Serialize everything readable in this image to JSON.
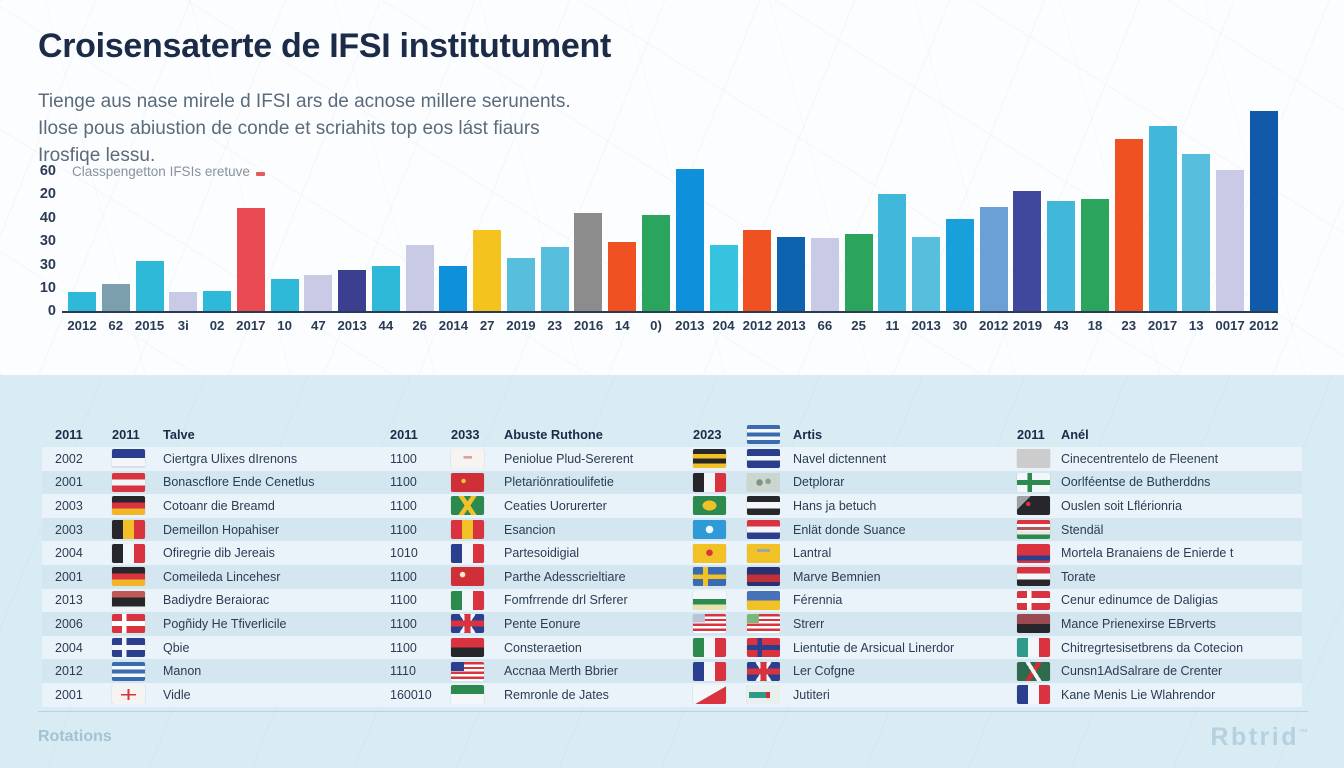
{
  "header": {
    "title": "Croisensaterte de IFSI institutument",
    "subtitle_lines": [
      "Tienge aus nase mirele d IFSI ars de acnose millere serunents.",
      "Ilose pous abiustion de conde et scriahits top eos lást fiaurs",
      "Irosfiqe lessu."
    ]
  },
  "chart_data": {
    "type": "bar",
    "title": "Classpengetton IFSIs eretuve",
    "xlabel": "",
    "ylabel": "",
    "ylim": [
      0,
      85
    ],
    "grid": false,
    "legend_position": "none",
    "y_ticks": [
      "60",
      "20",
      "40",
      "30",
      "30",
      "10",
      "0"
    ],
    "bars": [
      {
        "label": "2012",
        "value": 8.1,
        "color": "#2fb9d9"
      },
      {
        "label": "62",
        "value": 11.5,
        "color": "#7c9fae"
      },
      {
        "label": "2015",
        "value": 21.3,
        "color": "#2fb9d9"
      },
      {
        "label": "3i",
        "value": 8.1,
        "color": "#c9cae5"
      },
      {
        "label": "02",
        "value": 8.5,
        "color": "#2fb9d9"
      },
      {
        "label": "2017",
        "value": 43.8,
        "color": "#ea4a52"
      },
      {
        "label": "10",
        "value": 13.6,
        "color": "#2fb9d9"
      },
      {
        "label": "47",
        "value": 15.3,
        "color": "#c9cae5"
      },
      {
        "label": "2013",
        "value": 17.4,
        "color": "#3a3f90"
      },
      {
        "label": "44",
        "value": 19.1,
        "color": "#2fb9d9"
      },
      {
        "label": "26",
        "value": 28.1,
        "color": "#c9cae5"
      },
      {
        "label": "2014",
        "value": 19.1,
        "color": "#0f90da"
      },
      {
        "label": "27",
        "value": 34.5,
        "color": "#f4c31d"
      },
      {
        "label": "2019",
        "value": 22.6,
        "color": "#58bede"
      },
      {
        "label": "23",
        "value": 27.2,
        "color": "#58bede"
      },
      {
        "label": "2016",
        "value": 41.7,
        "color": "#8c8c8c"
      },
      {
        "label": "14",
        "value": 29.4,
        "color": "#f05123"
      },
      {
        "label": "0)",
        "value": 40.9,
        "color": "#2ba55d"
      },
      {
        "label": "2013",
        "value": 60.4,
        "color": "#0f90da"
      },
      {
        "label": "204",
        "value": 28.1,
        "color": "#35c3e0"
      },
      {
        "label": "2012",
        "value": 34.5,
        "color": "#f05123"
      },
      {
        "label": "2013",
        "value": 31.5,
        "color": "#0e63b0"
      },
      {
        "label": "66",
        "value": 31.1,
        "color": "#c9cae5"
      },
      {
        "label": "25",
        "value": 32.8,
        "color": "#2ba55d"
      },
      {
        "label": "11",
        "value": 49.8,
        "color": "#41b8d9"
      },
      {
        "label": "2013",
        "value": 31.5,
        "color": "#58bede"
      },
      {
        "label": "30",
        "value": 39.1,
        "color": "#199fd9"
      },
      {
        "label": "2012",
        "value": 44.3,
        "color": "#6ba0d6"
      },
      {
        "label": "2019",
        "value": 51.1,
        "color": "#3f489c"
      },
      {
        "label": "43",
        "value": 46.8,
        "color": "#41b8d9"
      },
      {
        "label": "18",
        "value": 47.7,
        "color": "#2ba55d"
      },
      {
        "label": "23",
        "value": 73.2,
        "color": "#f05123"
      },
      {
        "label": "2017",
        "value": 78.7,
        "color": "#41b8d9"
      },
      {
        "label": "13",
        "value": 66.8,
        "color": "#58bede"
      },
      {
        "label": "0017",
        "value": 60.0,
        "color": "#c9cae5"
      },
      {
        "label": "2012",
        "value": 85.1,
        "color": "#1159a9"
      }
    ]
  },
  "table": {
    "header_cells": [
      {
        "t": "2011"
      },
      {
        "t": "2011"
      },
      {
        "t": "Talve"
      },
      {
        "t": "2011"
      },
      {
        "t": "2033"
      },
      {
        "t": "Abuste Ruthone"
      },
      {
        "t": "2023"
      },
      {
        "flag": "greece"
      },
      {
        "t": "Artis"
      },
      {
        "t": "2011"
      },
      {
        "t": "Anél"
      }
    ],
    "rows": [
      {
        "year": "2002",
        "flag_a": "navy-white-h",
        "name_a": "Ciertgra Ulixes dIrenons",
        "value": "1100",
        "flag_b": "white-red-marks",
        "name_b": "Peniolue Plud-Sererent",
        "flag_c1": "black-yellow-stripes",
        "flag_c2": "navy-white-stripe",
        "name_c": "Navel dictennent",
        "flag_d": "red-white-red-star",
        "name_d": "Cinecentrentelo de Fleenent"
      },
      {
        "year": "2001",
        "flag_a": "austria",
        "name_a": "Bonascflore Ende Cenetlus",
        "value": "1100",
        "flag_b": "red-emblem",
        "name_b": "Pletariönratioulifetie",
        "flag_c1": "black-white-red-v",
        "flag_c2": "gray-emblem",
        "name_c": "Detplorar",
        "flag_d": "white-green-cross",
        "name_d": "Oorlféentse de Butherddns"
      },
      {
        "year": "2003",
        "flag_a": "germany",
        "name_a": "Cotoanr die Breamd",
        "value": "1100",
        "flag_b": "jamaica-x",
        "name_b": "Ceaties Uorurerter",
        "flag_c1": "green-yellow-emblem",
        "flag_c2": "black-white-black",
        "name_c": "Hans ja betuch",
        "flag_d": "black-red-emblem",
        "name_d": "Ouslen soit Lflérionria"
      },
      {
        "year": "2003",
        "flag_a": "belgium",
        "name_a": "Demeillon Hopahiser",
        "value": "1100",
        "flag_b": "red-yellow-v",
        "name_b": "Esancion",
        "flag_c1": "blue-dot",
        "flag_c2": "netherlands",
        "name_c": "Enlät donde Suance",
        "flag_d": "hungary-stripes",
        "name_d": "Stendäl"
      },
      {
        "year": "2004",
        "flag_a": "black-white-red-v",
        "name_a": "Ofiregrie dib Jereais",
        "value": "1010",
        "flag_b": "france",
        "name_b": "Partesoidigial",
        "flag_c1": "yellow-emblem",
        "flag_c2": "yellow-stripes",
        "name_c": "Lantral",
        "flag_d": "red-blue-h",
        "name_d": "Mortela Branaiens de Enierde t"
      },
      {
        "year": "2001",
        "flag_a": "germany",
        "name_a": "Comeileda Lincehesr",
        "value": "1100",
        "flag_b": "red-emblem2",
        "name_b": "Parthe Adesscrieltiare",
        "flag_c1": "sweden-squares",
        "flag_c2": "navy-red-h",
        "name_c": "Marve Bemnien",
        "flag_d": "yemen",
        "name_d": "Torate"
      },
      {
        "year": "2013",
        "flag_a": "red-black-h",
        "name_a": "Badiydre Beraiorac",
        "value": "1100",
        "flag_b": "italy",
        "name_b": "Fomfrrende drl Srferer",
        "flag_c1": "white-green-h",
        "flag_c2": "ukraine",
        "name_c": "Férennia",
        "flag_d": "denmark",
        "name_d": "Cenur edinumce de Daligias"
      },
      {
        "year": "2006",
        "flag_a": "denmark",
        "name_a": "Pogñidy He Tfiverlicile",
        "value": "1100",
        "flag_b": "uk",
        "name_b": "Pente Eonure",
        "flag_c1": "us-stripes",
        "flag_c2": "us-green",
        "name_c": "Strerr",
        "flag_d": "maroon-black-h",
        "name_d": "Mance Prienexirse EBrverts"
      },
      {
        "year": "2004",
        "flag_a": "blue-cross",
        "name_a": "Qbie",
        "value": "1100",
        "flag_b": "red-black-h2",
        "name_b": "Consteraetion",
        "flag_c1": "italy",
        "flag_c2": "red-blue-cross",
        "name_c": "Lientutie de Arsicual Linerdor",
        "flag_d": "mexico",
        "name_d": "Chitregrtesisetbrens da Cotecion"
      },
      {
        "year": "2012",
        "flag_a": "greece",
        "name_a": "Manon",
        "value": "1110",
        "flag_b": "usa",
        "name_b": "Accnaa Merth Bbrier",
        "flag_c1": "france",
        "flag_c2": "uk",
        "name_c": "Ler Cofgne",
        "flag_d": "uk-green",
        "name_d": "Cunsn1AdSalrare de Crenter"
      },
      {
        "year": "2001",
        "flag_a": "white-red-emblem",
        "name_a": "Vidle",
        "value": "160010",
        "flag_b": "green-white-h",
        "name_b": "Remronle de Jates",
        "flag_c1": "red-triangle",
        "flag_c2": "teal-arrow",
        "name_c": "Jutiteri",
        "flag_d": "france",
        "name_d": "Kane Menis Lie Wlahrendor"
      }
    ]
  },
  "footer": {
    "note": "Rotations",
    "brand": "Rbtrid",
    "brand_tm": "™"
  }
}
